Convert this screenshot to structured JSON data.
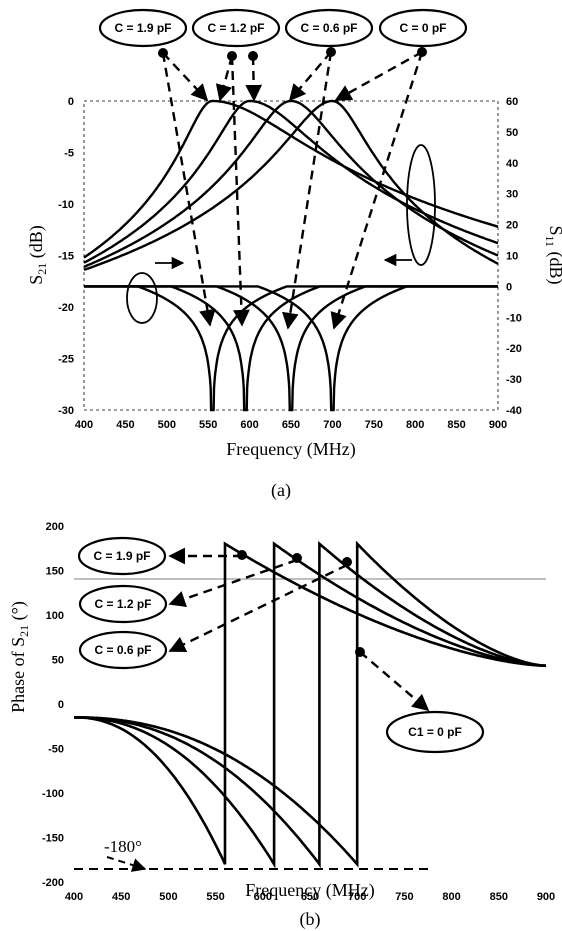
{
  "chart_data": [
    {
      "type": "line",
      "xlabel": "Frequency (MHz)",
      "ylabel": "S21 (dB)",
      "ylabel_right": "S11 (dB)",
      "caption": "(a)",
      "xlim": [
        400,
        900
      ],
      "ylim": [
        -30,
        0
      ],
      "ylim_right": [
        -40,
        60
      ],
      "xticks": [
        "400",
        "450",
        "500",
        "550",
        "600",
        "650",
        "700",
        "750",
        "800",
        "850",
        "900"
      ],
      "yticks": [
        "0",
        "-5",
        "-10",
        "-15",
        "-20",
        "-25",
        "-30"
      ],
      "yticks_right": [
        "60",
        "50",
        "40",
        "30",
        "20",
        "10",
        "0",
        "-10",
        "-20",
        "-30",
        "-40"
      ],
      "series": [
        {
          "name": "C = 1.9 pF",
          "s21_peak_mhz": 555,
          "s11_notch_mhz": 555
        },
        {
          "name": "C = 1.2 pF",
          "s21_peak_mhz": 600,
          "s11_notch_mhz": 595
        },
        {
          "name": "C = 0.6 pF",
          "s21_peak_mhz": 650,
          "s11_notch_mhz": 650
        },
        {
          "name": "C = 0 pF",
          "s21_peak_mhz": 700,
          "s11_notch_mhz": 700
        }
      ],
      "s21_at_400_db": [
        -15.2,
        -15.7,
        -16.1,
        -16.4
      ],
      "s21_at_900_db": [
        -12.2,
        -13.8,
        -15.0,
        -15.8
      ],
      "s11_baseline_db": 0,
      "s11_notch_min_db": -40
    },
    {
      "type": "line",
      "xlabel": "Frequency (MHz)",
      "ylabel": "Phase of  S21 (°)",
      "caption": "(b)",
      "xlim": [
        400,
        900
      ],
      "ylim": [
        -200,
        200
      ],
      "xticks": [
        "400",
        "450",
        "500",
        "550",
        "600",
        "650",
        "700",
        "750",
        "800",
        "850",
        "900"
      ],
      "yticks": [
        "200",
        "150",
        "100",
        "50",
        "0",
        "-50",
        "-100",
        "-150",
        "-200"
      ],
      "reference_line": {
        "label": "-180°",
        "value": -180,
        "x_range": [
          400,
          770
        ]
      },
      "series": [
        {
          "name": "C = 1.9 pF",
          "jump_mhz": 560
        },
        {
          "name": "C = 1.2 pF",
          "jump_mhz": 612
        },
        {
          "name": "C = 0.6 pF",
          "jump_mhz": 660
        },
        {
          "name": "C1 = 0 pF",
          "jump_mhz": 700
        }
      ],
      "phase_start_deg": -15,
      "phase_end_deg": 43
    }
  ],
  "labels": {
    "a_bubbles": [
      "C = 1.9 pF",
      "C = 1.2 pF",
      "C = 0.6 pF",
      "C = 0 pF"
    ],
    "b_bubbles": [
      "C = 1.9 pF",
      "C = 1.2 pF",
      "C = 0.6 pF",
      "C1 = 0 pF"
    ],
    "ref_label": "-180°"
  }
}
